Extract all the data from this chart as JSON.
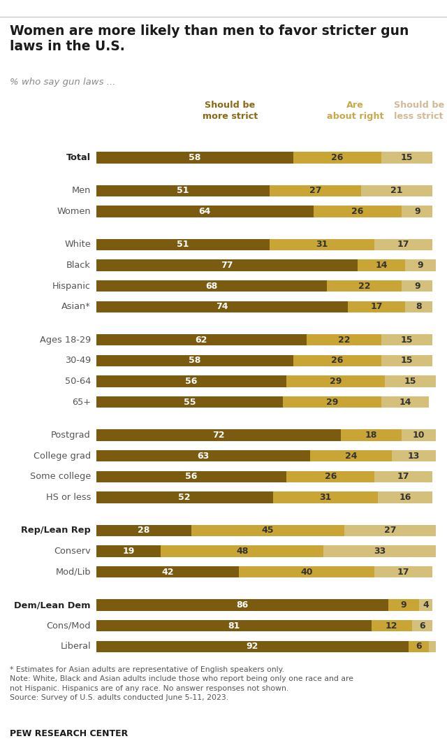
{
  "title": "Women are more likely than men to favor stricter gun\nlaws in the U.S.",
  "subtitle": "% who say gun laws ...",
  "col_headers": [
    "Should be\nmore strict",
    "Are\nabout right",
    "Should be\nless strict"
  ],
  "col_colors": [
    "#8B6914",
    "#C9A84C",
    "#D4B896"
  ],
  "categories": [
    {
      "label": "Total",
      "values": [
        58,
        26,
        15
      ],
      "bold": true,
      "gap_after": true
    },
    {
      "label": "Men",
      "values": [
        51,
        27,
        21
      ],
      "bold": false,
      "gap_after": false
    },
    {
      "label": "Women",
      "values": [
        64,
        26,
        9
      ],
      "bold": false,
      "gap_after": true
    },
    {
      "label": "White",
      "values": [
        51,
        31,
        17
      ],
      "bold": false,
      "gap_after": false
    },
    {
      "label": "Black",
      "values": [
        77,
        14,
        9
      ],
      "bold": false,
      "gap_after": false
    },
    {
      "label": "Hispanic",
      "values": [
        68,
        22,
        9
      ],
      "bold": false,
      "gap_after": false
    },
    {
      "label": "Asian*",
      "values": [
        74,
        17,
        8
      ],
      "bold": false,
      "gap_after": true
    },
    {
      "label": "Ages 18-29",
      "values": [
        62,
        22,
        15
      ],
      "bold": false,
      "gap_after": false
    },
    {
      "label": "30-49",
      "values": [
        58,
        26,
        15
      ],
      "bold": false,
      "gap_after": false
    },
    {
      "label": "50-64",
      "values": [
        56,
        29,
        15
      ],
      "bold": false,
      "gap_after": false
    },
    {
      "label": "65+",
      "values": [
        55,
        29,
        14
      ],
      "bold": false,
      "gap_after": true
    },
    {
      "label": "Postgrad",
      "values": [
        72,
        18,
        10
      ],
      "bold": false,
      "gap_after": false
    },
    {
      "label": "College grad",
      "values": [
        63,
        24,
        13
      ],
      "bold": false,
      "gap_after": false
    },
    {
      "label": "Some college",
      "values": [
        56,
        26,
        17
      ],
      "bold": false,
      "gap_after": false
    },
    {
      "label": "HS or less",
      "values": [
        52,
        31,
        16
      ],
      "bold": false,
      "gap_after": true
    },
    {
      "label": "Rep/Lean Rep",
      "values": [
        28,
        45,
        27
      ],
      "bold": true,
      "gap_after": false
    },
    {
      "label": "Conserv",
      "values": [
        19,
        48,
        33
      ],
      "bold": false,
      "gap_after": false
    },
    {
      "label": "Mod/Lib",
      "values": [
        42,
        40,
        17
      ],
      "bold": false,
      "gap_after": true
    },
    {
      "label": "Dem/Lean Dem",
      "values": [
        86,
        9,
        4
      ],
      "bold": true,
      "gap_after": false
    },
    {
      "label": "Cons/Mod",
      "values": [
        81,
        12,
        6
      ],
      "bold": false,
      "gap_after": false
    },
    {
      "label": "Liberal",
      "values": [
        92,
        6,
        2
      ],
      "bold": false,
      "gap_after": false
    }
  ],
  "colors": [
    "#7B5B10",
    "#C9A535",
    "#D4C07A"
  ],
  "bar_height": 0.55,
  "footnote": "* Estimates for Asian adults are representative of English speakers only.\nNote: White, Black and Asian adults include those who report being only one race and are\nnot Hispanic. Hispanics are of any race. No answer responses not shown.\nSource: Survey of U.S. adults conducted June 5-11, 2023.",
  "source_label": "PEW RESEARCH CENTER",
  "bg_color": "#FFFFFF"
}
